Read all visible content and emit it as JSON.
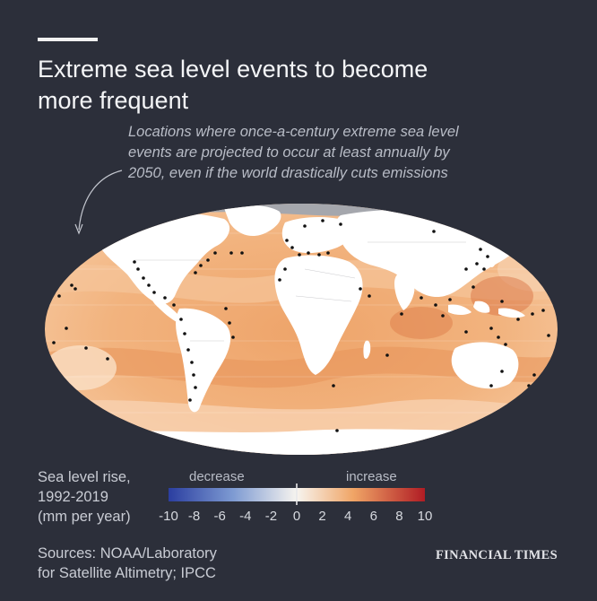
{
  "header": {
    "title_line1": "Extreme sea level events to become",
    "title_line2": "more frequent"
  },
  "annotation": {
    "line1": "Locations where once-a-century extreme sea level",
    "line2": "events are projected to occur at least annually by",
    "line3": "2050, even if the world drastically cuts emissions"
  },
  "legend": {
    "title_line1": "Sea level rise,",
    "title_line2": "1992-2019",
    "title_line3": "(mm per year)",
    "decrease_label": "decrease",
    "increase_label": "increase",
    "ticks": [
      "-10",
      "-8",
      "-6",
      "-4",
      "-2",
      "0",
      "2",
      "4",
      "6",
      "8",
      "10"
    ],
    "scale_min": -10,
    "scale_max": 10,
    "colors": {
      "min": "#2b3ea0",
      "mid": "#f7f4ef",
      "max": "#b01c24"
    }
  },
  "footer": {
    "sources_line1": "Sources: NOAA/Laboratory",
    "sources_line2": "for Satellite Altimetry; IPCC",
    "brand": "FINANCIAL TIMES"
  },
  "colors": {
    "background": "#2c2f3a",
    "land": "#ffffff",
    "ice": "#9c9ea3",
    "ocean_base": "#f2b07a",
    "dots": "#111111"
  }
}
